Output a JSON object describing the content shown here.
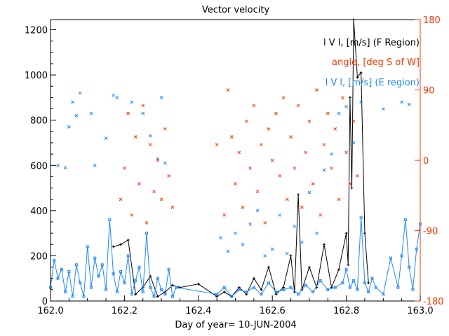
{
  "chart_data": {
    "type": "line",
    "title": "Vector velocity",
    "xlabel": "Day of year= 10-JUN-2004",
    "ylabel": "",
    "xlim": [
      162.0,
      163.0
    ],
    "ylim": [
      0,
      1245
    ],
    "y2lim": [
      -180,
      180
    ],
    "x_ticks": [
      "162.0",
      "162.2",
      "162.4",
      "162.6",
      "162.8",
      "163.0"
    ],
    "x_tick_values": [
      162.0,
      162.2,
      162.4,
      162.6,
      162.8,
      163.0
    ],
    "y_ticks": [
      "0",
      "200",
      "400",
      "600",
      "800",
      "1000",
      "1200"
    ],
    "y_tick_values": [
      0,
      200,
      400,
      600,
      800,
      1000,
      1200
    ],
    "y2_ticks": [
      "180",
      "90",
      "0",
      "-90",
      "-180"
    ],
    "y2_tick_values": [
      180,
      90,
      0,
      -90,
      -180
    ],
    "legend": [
      {
        "label": "l V l, [m/s] (F Region)",
        "color": "#000000"
      },
      {
        "label": "angle, [deg S of W]",
        "color": "#ff3300"
      },
      {
        "label": "l V l, [m/s] (E region)",
        "color": "#1e88ff"
      }
    ],
    "legend_placement": "top-right",
    "series": [
      {
        "name": "F region |V|",
        "axis": "left",
        "style": "line",
        "color": "#000000",
        "x": [
          162.17,
          162.19,
          162.21,
          162.23,
          162.25,
          162.27,
          162.29,
          162.31,
          162.33,
          162.35,
          162.4,
          162.45,
          162.47,
          162.49,
          162.51,
          162.53,
          162.55,
          162.57,
          162.59,
          162.61,
          162.63,
          162.65,
          162.66,
          162.67,
          162.68,
          162.7,
          162.72,
          162.74,
          162.76,
          162.78,
          162.8,
          162.805,
          162.81,
          162.815,
          162.82,
          162.83,
          162.84,
          162.85,
          162.86
        ],
        "y": [
          240,
          250,
          270,
          30,
          60,
          110,
          20,
          40,
          70,
          60,
          75,
          20,
          40,
          20,
          60,
          30,
          100,
          50,
          150,
          30,
          60,
          200,
          40,
          470,
          50,
          150,
          60,
          250,
          60,
          140,
          300,
          160,
          900,
          500,
          1260,
          990,
          1010,
          300,
          80
        ]
      },
      {
        "name": "E region |V|",
        "axis": "left",
        "style": "line-square",
        "color": "#1e88ff",
        "x": [
          162.0,
          162.01,
          162.02,
          162.03,
          162.04,
          162.05,
          162.06,
          162.07,
          162.08,
          162.09,
          162.1,
          162.11,
          162.12,
          162.13,
          162.14,
          162.15,
          162.16,
          162.17,
          162.18,
          162.19,
          162.2,
          162.21,
          162.22,
          162.23,
          162.24,
          162.25,
          162.26,
          162.27,
          162.28,
          162.29,
          162.3,
          162.31,
          162.32,
          162.33,
          162.34,
          162.45,
          162.47,
          162.49,
          162.51,
          162.53,
          162.55,
          162.57,
          162.59,
          162.61,
          162.63,
          162.65,
          162.67,
          162.69,
          162.71,
          162.73,
          162.75,
          162.77,
          162.79,
          162.8,
          162.81,
          162.82,
          162.83,
          162.84,
          162.85,
          162.86,
          162.87,
          162.88,
          162.9,
          162.92,
          162.94,
          162.95,
          162.96,
          162.97,
          162.98,
          162.99,
          163.0
        ],
        "y": [
          60,
          180,
          100,
          140,
          40,
          130,
          20,
          160,
          80,
          20,
          240,
          60,
          190,
          110,
          160,
          50,
          360,
          120,
          40,
          130,
          80,
          200,
          30,
          90,
          150,
          40,
          300,
          60,
          20,
          100,
          50,
          30,
          140,
          20,
          60,
          30,
          60,
          20,
          50,
          40,
          60,
          30,
          80,
          40,
          50,
          60,
          30,
          70,
          40,
          90,
          50,
          60,
          80,
          140,
          60,
          90,
          50,
          370,
          80,
          40,
          100,
          60,
          30,
          190,
          60,
          200,
          360,
          150,
          50,
          230,
          340
        ]
      },
      {
        "name": "E region |V| samples",
        "axis": "left",
        "style": "x",
        "color": "#1e88ff",
        "x": [
          162.02,
          162.04,
          162.05,
          162.06,
          162.07,
          162.08,
          162.11,
          162.12,
          162.15,
          162.17,
          162.18,
          162.22,
          162.25,
          162.27,
          162.29,
          162.3,
          162.31,
          162.46,
          162.48,
          162.5,
          162.52,
          162.54,
          162.56,
          162.58,
          162.6,
          162.62,
          162.64,
          162.66,
          162.68,
          162.7,
          162.72,
          162.74,
          162.76,
          162.78,
          162.8,
          162.82,
          162.84,
          162.9,
          162.95,
          162.97
        ],
        "y": [
          600,
          590,
          770,
          880,
          820,
          920,
          830,
          600,
          720,
          910,
          900,
          880,
          830,
          730,
          630,
          900,
          610,
          280,
          220,
          300,
          250,
          340,
          400,
          200,
          230,
          380,
          210,
          330,
          260,
          480,
          300,
          580,
          650,
          830,
          860,
          700,
          880,
          850,
          880,
          870
        ]
      },
      {
        "name": "angle",
        "axis": "right",
        "style": "x",
        "color": "#ff3300",
        "x": [
          162.19,
          162.2,
          162.21,
          162.22,
          162.23,
          162.24,
          162.25,
          162.26,
          162.27,
          162.28,
          162.29,
          162.3,
          162.31,
          162.32,
          162.33,
          162.45,
          162.47,
          162.48,
          162.49,
          162.5,
          162.51,
          162.52,
          162.53,
          162.54,
          162.55,
          162.56,
          162.57,
          162.58,
          162.59,
          162.6,
          162.61,
          162.62,
          162.63,
          162.64,
          162.65,
          162.66,
          162.67,
          162.68,
          162.69,
          162.7,
          162.71,
          162.72,
          162.73,
          162.74,
          162.75,
          162.76,
          162.77,
          162.78,
          162.79,
          162.8,
          162.81,
          162.82,
          162.83
        ],
        "y": [
          -50,
          -10,
          60,
          -70,
          30,
          -30,
          70,
          -80,
          20,
          -40,
          0,
          -50,
          40,
          -20,
          -60,
          20,
          -70,
          90,
          30,
          -30,
          10,
          -60,
          50,
          -10,
          70,
          -40,
          20,
          -80,
          40,
          0,
          60,
          -20,
          80,
          -50,
          30,
          -10,
          70,
          -60,
          10,
          50,
          -30,
          90,
          -70,
          20,
          60,
          -10,
          40,
          -50,
          80,
          10,
          -30,
          50,
          -20
        ]
      }
    ]
  }
}
